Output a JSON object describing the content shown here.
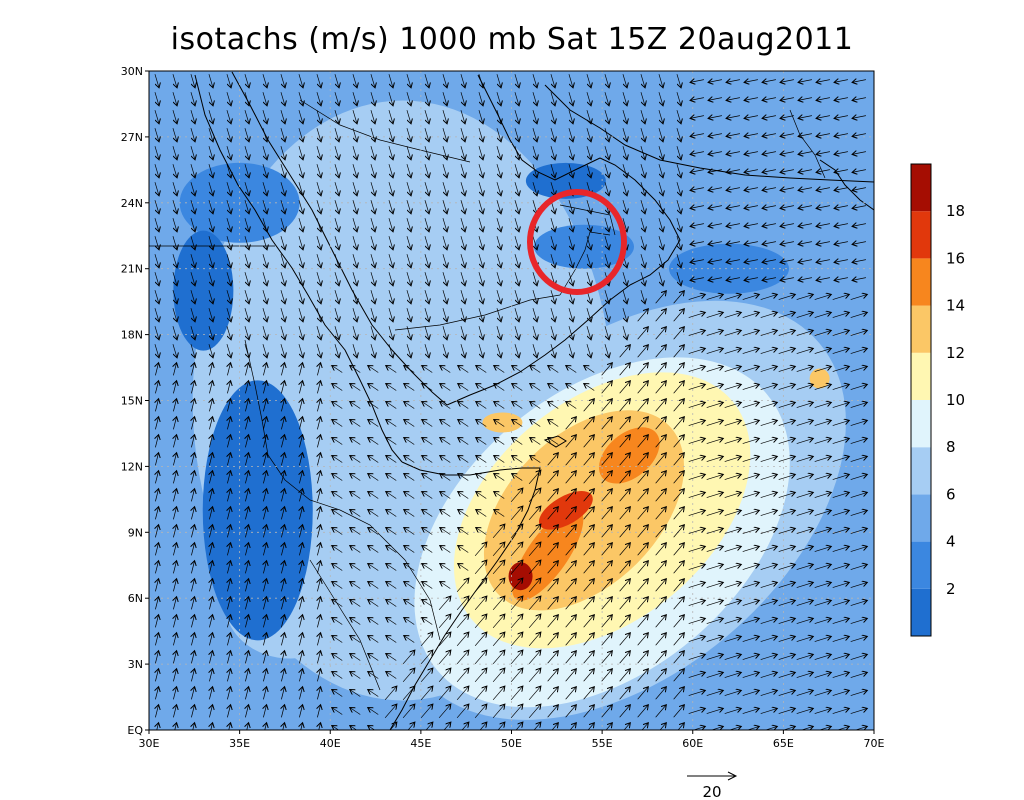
{
  "title": "isotachs (m/s) 1000 mb Sat 15Z 20aug2011",
  "map": {
    "lon_range": [
      30,
      70
    ],
    "lat_range": [
      0,
      30
    ],
    "x_ticks": [
      "30E",
      "35E",
      "40E",
      "45E",
      "50E",
      "55E",
      "60E",
      "65E",
      "70E"
    ],
    "y_ticks": [
      "EQ",
      "3N",
      "6N",
      "9N",
      "12N",
      "15N",
      "18N",
      "21N",
      "24N",
      "27N",
      "30N"
    ],
    "x_tick_values": [
      30,
      35,
      40,
      45,
      50,
      55,
      60,
      65,
      70
    ],
    "y_tick_values": [
      0,
      3,
      6,
      9,
      12,
      15,
      18,
      21,
      24,
      27,
      30
    ],
    "grid": true,
    "annotation": {
      "type": "red-circle",
      "lon": 54,
      "lat": 22,
      "color": "#e8262a"
    }
  },
  "colorbar": {
    "labels": [
      "2",
      "4",
      "6",
      "8",
      "10",
      "12",
      "14",
      "16",
      "18"
    ],
    "colors": [
      "#1f6fd0",
      "#3b87e0",
      "#6fa9ea",
      "#a6cdf3",
      "#e0f4fc",
      "#fff7b2",
      "#fbc766",
      "#f7861e",
      "#e1380c",
      "#a50d02"
    ]
  },
  "wind_reference": {
    "label": "20",
    "speed": 20
  },
  "speed_cores": [
    {
      "lon": 51,
      "lat": 7,
      "value": 19
    },
    {
      "lon": 52.5,
      "lat": 10,
      "value": 17
    },
    {
      "lon": 57,
      "lat": 13,
      "value": 17
    },
    {
      "lon": 49.5,
      "lat": 14,
      "value": 14
    }
  ]
}
